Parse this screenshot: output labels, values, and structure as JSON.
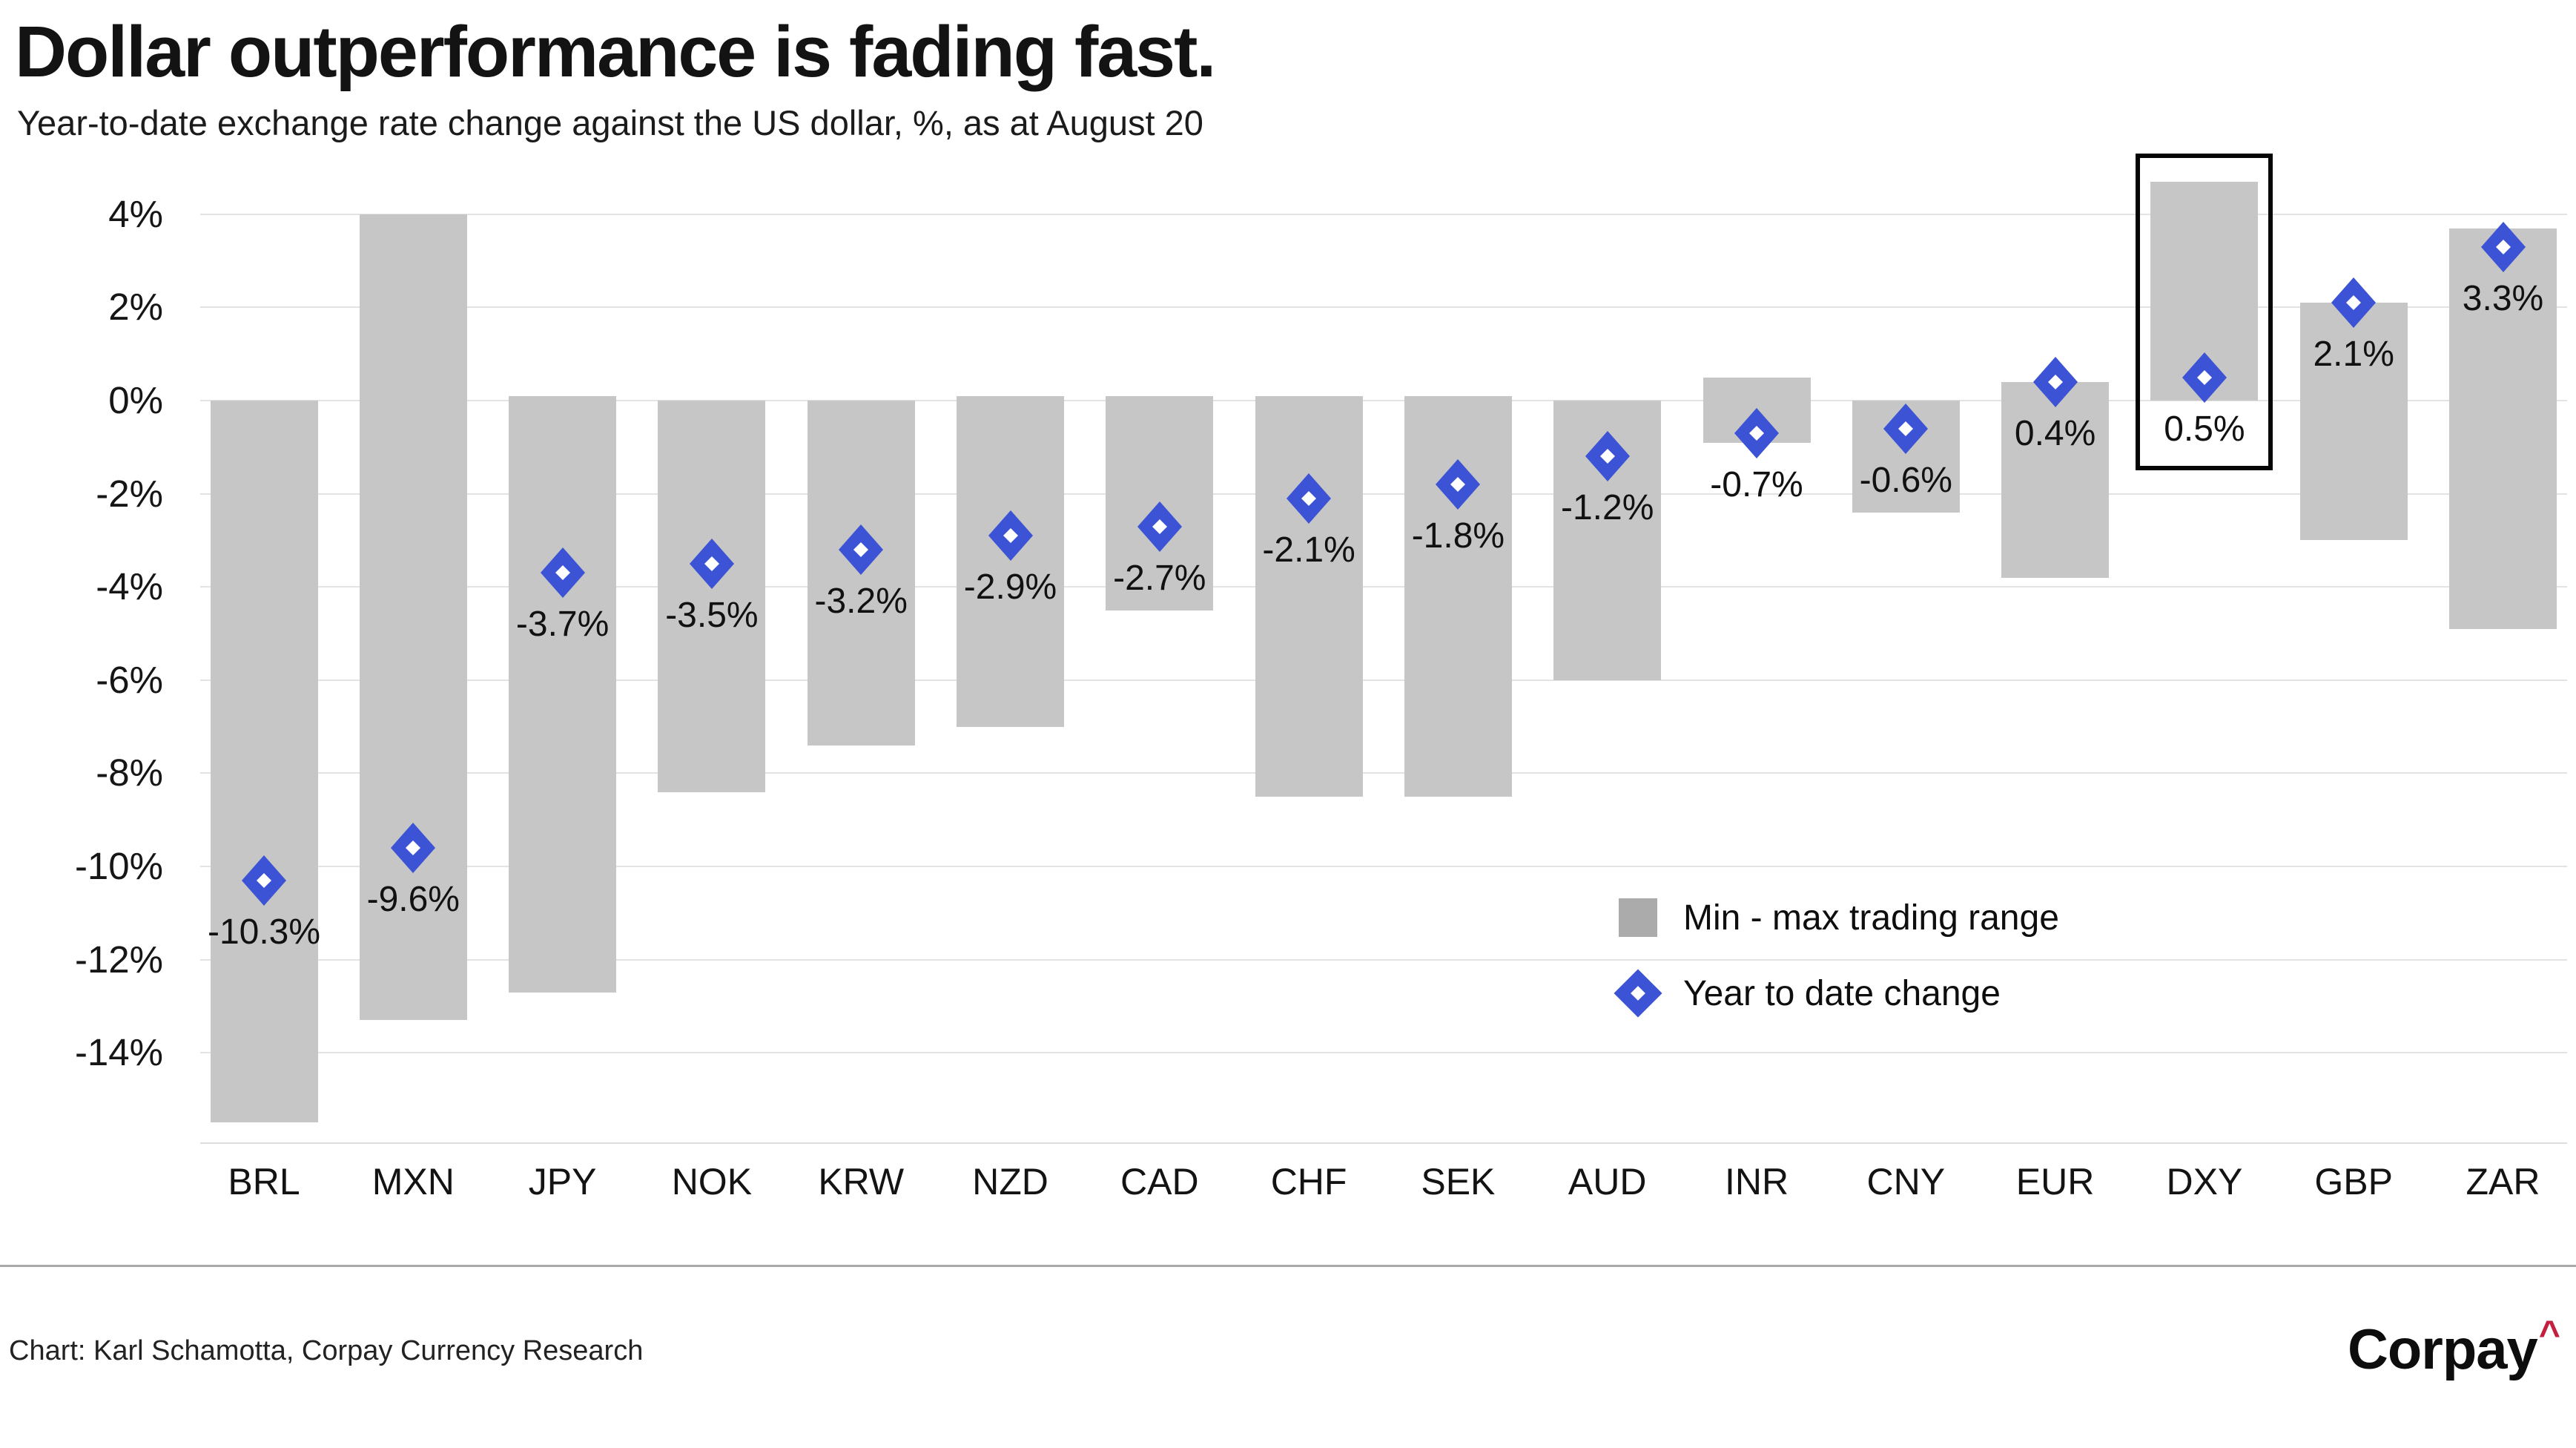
{
  "chart_data": {
    "type": "bar",
    "title": "Dollar outperformance is fading fast.",
    "subtitle": "Year-to-date exchange rate change against the US dollar, %, as at August 20",
    "xlabel": "",
    "ylabel": "",
    "y_axis": {
      "min": -16,
      "max": 5.2,
      "unit": "%",
      "grid": true,
      "ticks": [
        {
          "value": 4,
          "label": "4%"
        },
        {
          "value": 2,
          "label": "2%"
        },
        {
          "value": 0,
          "label": "0%"
        },
        {
          "value": -2,
          "label": "-2%"
        },
        {
          "value": -4,
          "label": "-4%"
        },
        {
          "value": -6,
          "label": "-6%"
        },
        {
          "value": -8,
          "label": "-8%"
        },
        {
          "value": -10,
          "label": "-10%"
        },
        {
          "value": -12,
          "label": "-12%"
        },
        {
          "value": -14,
          "label": "-14%"
        }
      ]
    },
    "categories": [
      "BRL",
      "MXN",
      "JPY",
      "NOK",
      "KRW",
      "NZD",
      "CAD",
      "CHF",
      "SEK",
      "AUD",
      "INR",
      "CNY",
      "EUR",
      "DXY",
      "GBP",
      "ZAR"
    ],
    "series": [
      {
        "name": "Min - max trading range",
        "type": "range-bar",
        "max_values": [
          0.0,
          4.0,
          0.1,
          0.0,
          0.0,
          0.1,
          0.1,
          0.1,
          0.1,
          0.0,
          0.5,
          0.0,
          0.4,
          4.7,
          2.1,
          3.7
        ],
        "min_values": [
          -15.5,
          -13.3,
          -12.7,
          -8.4,
          -7.4,
          -7.0,
          -4.5,
          -8.5,
          -8.5,
          -6.0,
          -0.9,
          -2.4,
          -3.8,
          0.0,
          -3.0,
          -4.9
        ]
      },
      {
        "name": "Year to date change",
        "type": "point",
        "values": [
          -10.3,
          -9.6,
          -3.7,
          -3.5,
          -3.2,
          -2.9,
          -2.7,
          -2.1,
          -1.8,
          -1.2,
          -0.7,
          -0.6,
          0.4,
          0.5,
          2.1,
          3.3
        ],
        "labels": [
          "-10.3%",
          "-9.6%",
          "-3.7%",
          "-3.5%",
          "-3.2%",
          "-2.9%",
          "-2.7%",
          "-2.1%",
          "-1.8%",
          "-1.2%",
          "-0.7%",
          "-0.6%",
          "0.4%",
          "0.5%",
          "2.1%",
          "3.3%"
        ]
      }
    ],
    "legend": {
      "position": "inside-right",
      "range_label": "Min - max trading range",
      "ytd_label": "Year to date change"
    },
    "highlight": {
      "category": "DXY",
      "box_top_pct": 5.2,
      "box_bottom_pct": -1.4
    }
  },
  "colors": {
    "bar": "#c6c6c6",
    "legend_swatch": "#ababab",
    "diamond": "#3b53d4",
    "diamond_center": "#ffffff",
    "gridline": "#e3e3e3",
    "highlight_box": "#050505",
    "text": "#131313",
    "divider": "#aaaaaa",
    "logo_caret": "#c41f3e"
  },
  "footer": {
    "credit": "Chart: Karl Schamotta, Corpay Currency Research",
    "logo_text": "Corpay",
    "logo_caret": "^"
  }
}
